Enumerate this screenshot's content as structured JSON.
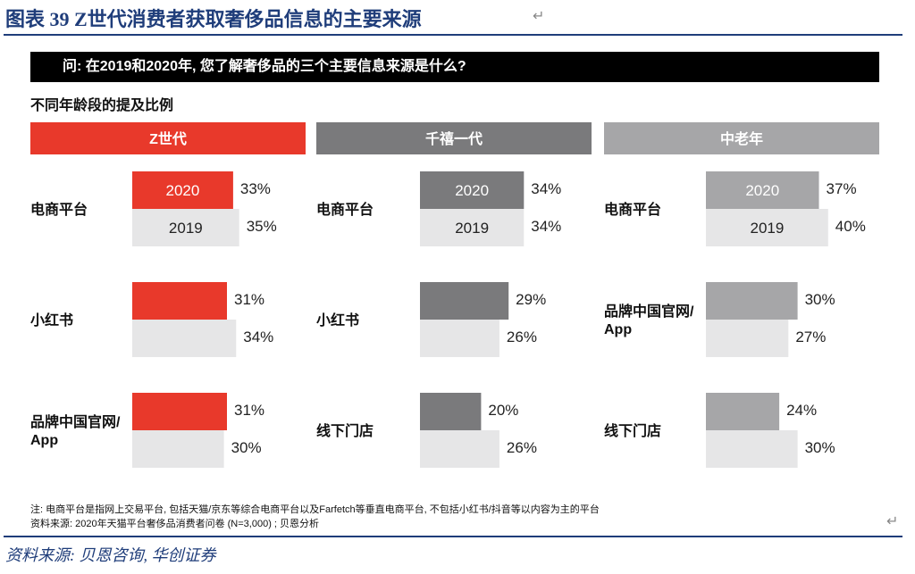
{
  "figure_title": "图表 39   Z世代消费者获取奢侈品信息的主要来源",
  "question": "问: 在2019和2020年, 您了解奢侈品的三个主要信息来源是什么?",
  "subheading": "不同年龄段的提及比例",
  "notes": {
    "line1": "注: 电商平台是指网上交易平台, 包括天猫/京东等综合电商平台以及Farfetch等垂直电商平台, 不包括小红书/抖音等以内容为主的平台",
    "line2": "资料来源: 2020年天猫平台奢侈品消费者问卷 (N=3,000) ; 贝恩分析"
  },
  "footer_source": "资料来源: 贝恩咨询, 华创证券",
  "return_mark": "↵",
  "colors": {
    "gen_z": "#e8392b",
    "millennial": "#7a7a7c",
    "senior": "#a6a6a8",
    "year2019_bar": "#e6e6e7",
    "header_text": "#ffffff",
    "title_blue": "#1f3d7a"
  },
  "chart_data": {
    "type": "bar",
    "orientation": "horizontal",
    "series_names": [
      "2020",
      "2019"
    ],
    "panels": [
      {
        "name": "Z世代",
        "groups": [
          {
            "category": "电商平台",
            "values": [
              33,
              35
            ]
          },
          {
            "category": "小红书",
            "values": [
              31,
              34
            ]
          },
          {
            "category": "品牌中国官网/ App",
            "values": [
              31,
              30
            ]
          }
        ]
      },
      {
        "name": "千禧一代",
        "groups": [
          {
            "category": "电商平台",
            "values": [
              34,
              34
            ]
          },
          {
            "category": "小红书",
            "values": [
              29,
              26
            ]
          },
          {
            "category": "线下门店",
            "values": [
              20,
              26
            ]
          }
        ]
      },
      {
        "name": "中老年",
        "groups": [
          {
            "category": "电商平台",
            "values": [
              37,
              40
            ]
          },
          {
            "category": "品牌中国官网/ App",
            "values": [
              30,
              27
            ]
          },
          {
            "category": "线下门店",
            "values": [
              24,
              30
            ]
          }
        ]
      }
    ],
    "value_suffix": "%",
    "grid": false,
    "legend": "none"
  }
}
